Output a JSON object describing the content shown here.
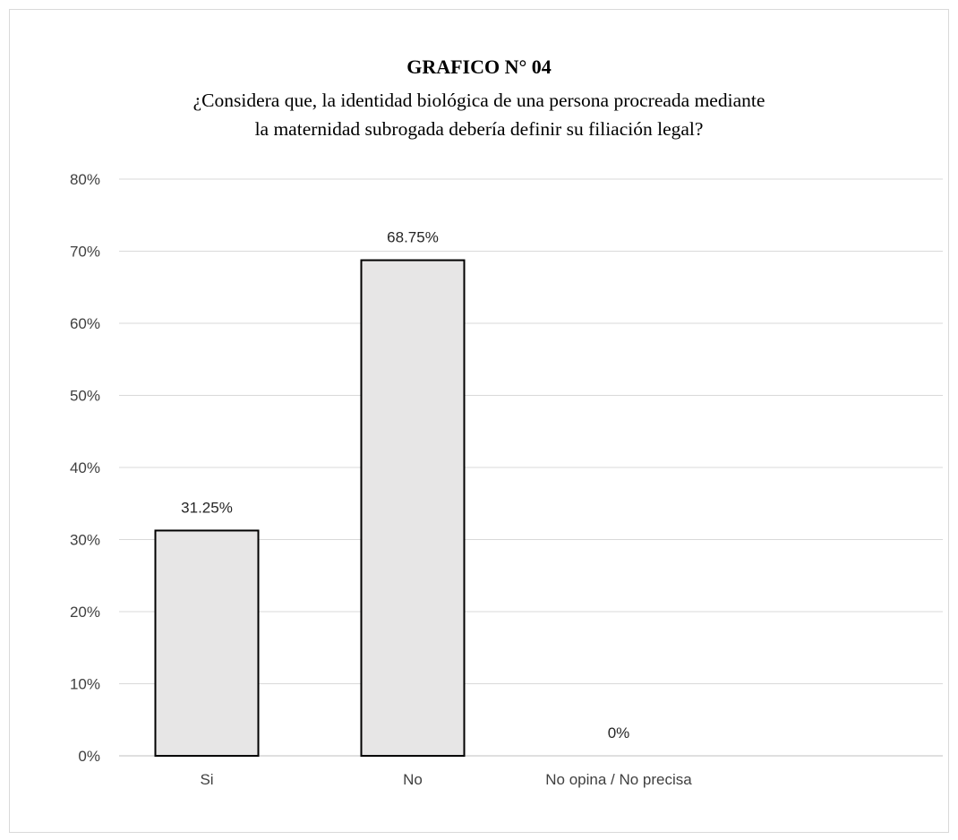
{
  "chart_data": {
    "type": "bar",
    "title": "GRAFICO N° 04",
    "subtitle_lines": [
      "¿Considera que, la identidad biológica de una persona procreada mediante",
      "la maternidad subrogada debería definir su filiación legal?"
    ],
    "categories": [
      "Si",
      "No",
      "No opina / No precisa"
    ],
    "values": [
      31.25,
      68.75,
      0
    ],
    "data_labels": [
      "31.25%",
      "68.75%",
      "0%"
    ],
    "y_ticks": [
      "0%",
      "10%",
      "20%",
      "30%",
      "40%",
      "50%",
      "60%",
      "70%",
      "80%"
    ],
    "ylim": [
      0,
      80
    ],
    "xlabel": "",
    "ylabel": "",
    "grid": true,
    "colors": {
      "bar_fill": "#e7e6e6",
      "bar_stroke": "#000000",
      "grid": "#d9d9d9"
    }
  }
}
